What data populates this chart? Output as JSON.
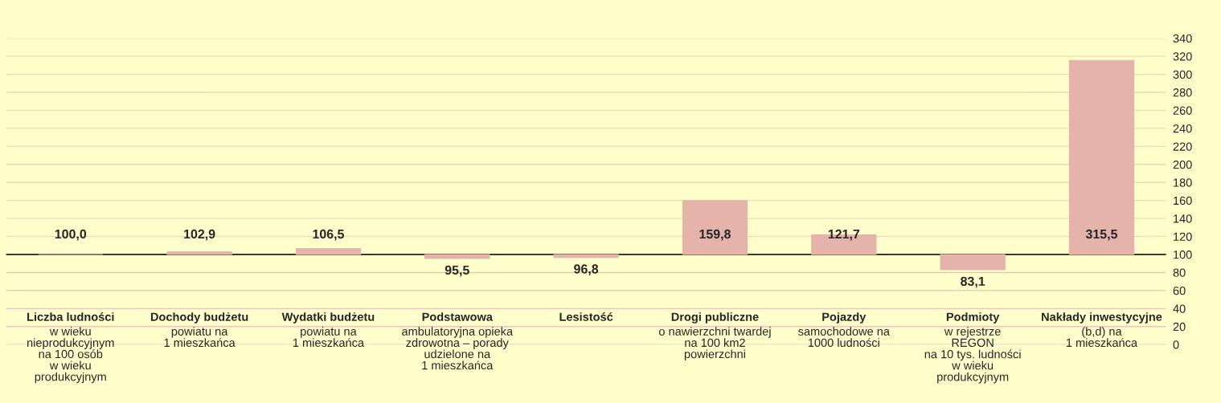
{
  "chart_data": {
    "type": "bar",
    "categories": [
      "Liczba ludności\nw wieku\nnieprodukcyjnym\nna 100 osób\nw wieku\nprodukcyjnym",
      "Dochody budżetu\npowiatu na\n1 mieszkańca",
      "Wydatki budżetu\npowiatu na\n1 mieszkańca",
      "Podstawowa\nambulatoryjna opieka\nzdrowotna – porady\nudzielone na\n1 mieszkańca",
      "Lesistość",
      "Drogi publiczne\no nawierzchni twardej\nna 100 km2\npowierzchni",
      "Pojazdy\nsamochodowe na\n1000 ludności",
      "Podmioty\nw rejestrze\nREGON\nna 10 tys. ludności\nw wieku\nprodukcyjnym",
      "Nakłady inwestycyjne\n(b,d) na\n1 mieszkańca"
    ],
    "base": [
      100,
      100,
      100,
      100,
      100,
      100,
      100,
      100,
      100
    ],
    "values": [
      0,
      2.9,
      6.5,
      -4.5,
      -3.2,
      59.8,
      21.7,
      -16.9,
      215.5
    ],
    "value_labels": [
      "100,0",
      "102,9",
      "106,5",
      "95,5",
      "96,8",
      "159,8",
      "121,7",
      "83,1",
      "315,5"
    ],
    "color": "#e6b3ab",
    "ylim": [
      0,
      340
    ],
    "yticks": [
      0,
      20,
      40,
      60,
      80,
      100,
      120,
      140,
      160,
      180,
      200,
      220,
      240,
      260,
      280,
      300,
      320,
      340
    ],
    "ref_lines": [
      {
        "axis": "y",
        "value": 100,
        "color": "#000000"
      }
    ],
    "grid": "y"
  }
}
